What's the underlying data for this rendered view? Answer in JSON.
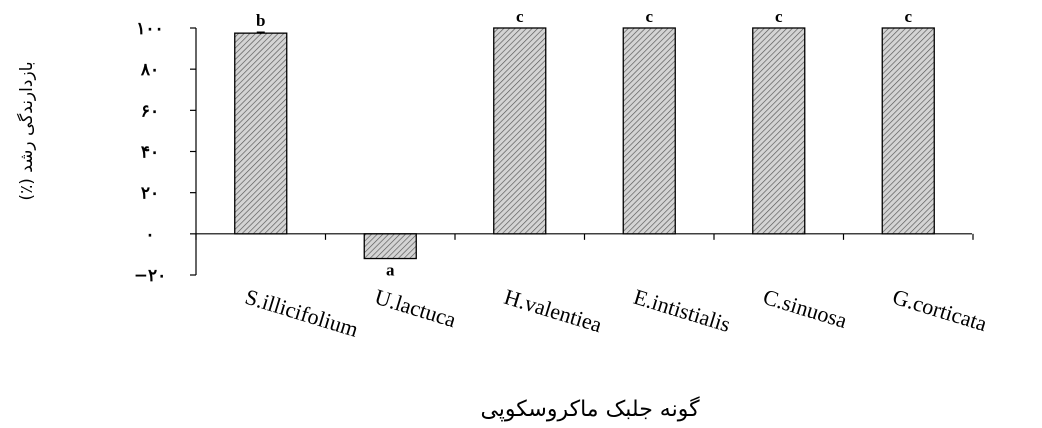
{
  "chart_data": {
    "type": "bar",
    "categories": [
      "S.illicifolium",
      "U.lactuca",
      "H.valentiea",
      "E.intistialis",
      "C.sinuosa",
      "G.corticata"
    ],
    "values": [
      97.5,
      -12,
      100,
      100,
      100,
      100
    ],
    "error": [
      0.5,
      0,
      0,
      0,
      0,
      0
    ],
    "significance_letters": [
      "b",
      "a",
      "c",
      "c",
      "c",
      "c"
    ],
    "ylim": [
      -20,
      100
    ],
    "yticks": [
      -20,
      0,
      20,
      40,
      60,
      80,
      100
    ],
    "ytick_labels": [
      "−۲۰",
      "۰",
      "۲۰",
      "۴۰",
      "۶۰",
      "۸۰",
      "۱۰۰"
    ],
    "xlabel": "گونه جلبک ماکروسکوپی",
    "ylabel": "بازدارندگی رشد (٪)",
    "grid": false,
    "legend": "none",
    "bar_fill": "#d4d4d4",
    "bar_hatch": "#555555"
  }
}
